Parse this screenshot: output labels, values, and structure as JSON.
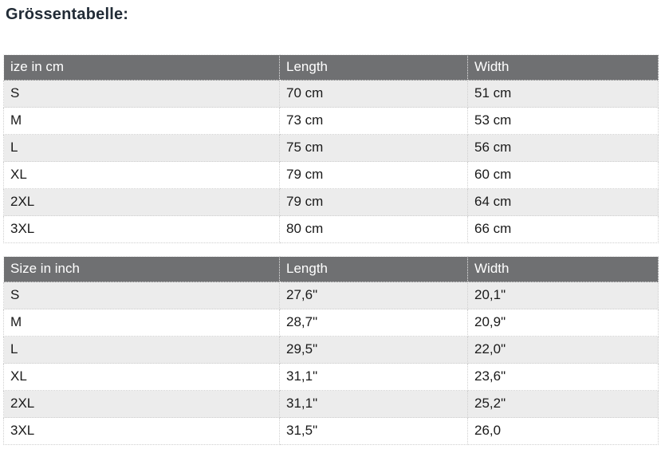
{
  "page": {
    "title": "Grössentabelle:"
  },
  "colors": {
    "header_bg": "#6f7072",
    "header_text": "#ffffff",
    "row_alt_bg": "#ececec",
    "row_bg": "#ffffff",
    "body_text": "#1a1a1a",
    "title_text": "#212b36",
    "border_dotted": "#cfcfcf"
  },
  "tables": [
    {
      "name": "size-table-cm",
      "headers": [
        "ize in cm",
        "Length",
        "Width"
      ],
      "rows": [
        [
          "S",
          "70 cm",
          "51 cm"
        ],
        [
          "M",
          "73 cm",
          "53 cm"
        ],
        [
          "L",
          "75 cm",
          "56 cm"
        ],
        [
          "XL",
          "79 cm",
          "60 cm"
        ],
        [
          "2XL",
          "79 cm",
          "64 cm"
        ],
        [
          "3XL",
          "80 cm",
          "66 cm"
        ]
      ]
    },
    {
      "name": "size-table-inch",
      "headers": [
        "Size in inch",
        "Length",
        "Width"
      ],
      "rows": [
        [
          "S",
          "27,6\"",
          "20,1\""
        ],
        [
          "M",
          "28,7\"",
          "20,9\""
        ],
        [
          "L",
          "29,5\"",
          "22,0\""
        ],
        [
          "XL",
          "31,1\"",
          "23,6\""
        ],
        [
          "2XL",
          "31,1\"",
          "25,2\""
        ],
        [
          "3XL",
          "31,5\"",
          "26,0"
        ]
      ]
    }
  ]
}
